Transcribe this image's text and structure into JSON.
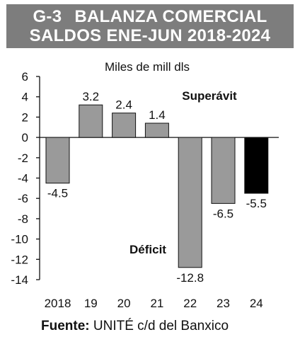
{
  "header": {
    "code": "G-3",
    "title": "BALANZA COMERCIAL",
    "subtitle": "SALDOS ENE-JUN 2018-2024"
  },
  "source": {
    "label": "Fuente:",
    "text": "UNITÉ c/d del Banxico"
  },
  "chart_data": {
    "type": "bar",
    "unit_label": "Miles de mill dls",
    "categories": [
      "2018",
      "19",
      "20",
      "21",
      "22",
      "23",
      "24"
    ],
    "values": [
      -4.5,
      3.2,
      2.4,
      1.4,
      -12.8,
      -6.5,
      -5.5
    ],
    "value_labels": [
      "-4.5",
      "3.2",
      "2.4",
      "1.4",
      "-12.8",
      "-6.5",
      "-5.5"
    ],
    "bar_colors": [
      "#9a9a9a",
      "#9a9a9a",
      "#9a9a9a",
      "#9a9a9a",
      "#9a9a9a",
      "#9a9a9a",
      "#000000"
    ],
    "ylim": [
      -14,
      6
    ],
    "yticks": [
      6,
      4,
      2,
      0,
      -2,
      -4,
      -6,
      -8,
      -10,
      -12,
      -14
    ],
    "annotations": {
      "positive": "Superávit",
      "negative": "Déficit"
    },
    "grid": false
  }
}
